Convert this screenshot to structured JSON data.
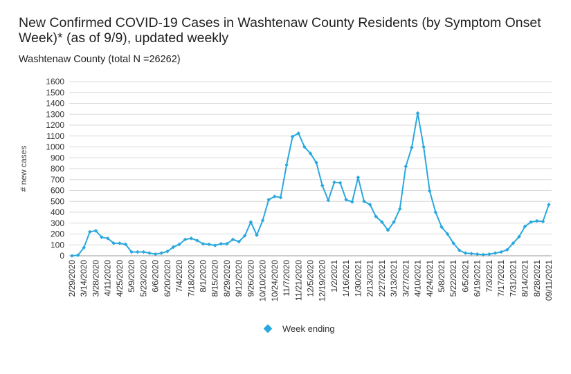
{
  "title": "New Confirmed COVID-19 Cases in Washtenaw County Residents (by Symptom Onset Week)* (as of 9/9), updated weekly",
  "subtitle": "Washtenaw County (total N =26262)",
  "colors": {
    "series": "#29a8de",
    "grid": "#d9d9d9"
  },
  "chart_data": {
    "type": "line",
    "title": "New Confirmed COVID-19 Cases in Washtenaw County Residents (by Symptom Onset Week)* (as of 9/9), updated weekly",
    "subtitle": "Washtenaw County (total N =26262)",
    "xlabel": "",
    "ylabel": "# new cases",
    "ylim": [
      0,
      1600
    ],
    "yticks": [
      0,
      100,
      200,
      300,
      400,
      500,
      600,
      700,
      800,
      900,
      1000,
      1100,
      1200,
      1300,
      1400,
      1500,
      1600
    ],
    "grid": true,
    "legend_position": "bottom",
    "x": [
      "2/29/2020",
      "3/7/2020",
      "3/14/2020",
      "3/21/2020",
      "3/28/2020",
      "4/4/2020",
      "4/11/2020",
      "4/18/2020",
      "4/25/2020",
      "5/2/2020",
      "5/9/2020",
      "5/16/2020",
      "5/23/2020",
      "5/30/2020",
      "6/6/2020",
      "6/13/2020",
      "6/20/2020",
      "6/27/2020",
      "7/4/2020",
      "7/11/2020",
      "7/18/2020",
      "7/25/2020",
      "8/1/2020",
      "8/8/2020",
      "8/15/2020",
      "8/22/2020",
      "8/29/2020",
      "9/5/2020",
      "9/12/2020",
      "9/19/2020",
      "9/26/2020",
      "10/3/2020",
      "10/10/2020",
      "10/17/2020",
      "10/24/2020",
      "10/31/2020",
      "11/7/2020",
      "11/14/2020",
      "11/21/2020",
      "11/28/2020",
      "12/5/2020",
      "12/12/2020",
      "12/19/2020",
      "12/26/2020",
      "1/2/2021",
      "1/9/2021",
      "1/16/2021",
      "1/23/2021",
      "1/30/2021",
      "2/6/2021",
      "2/13/2021",
      "2/20/2021",
      "2/27/2021",
      "3/6/2021",
      "3/13/2021",
      "3/20/2021",
      "3/27/2021",
      "4/3/2021",
      "4/10/2021",
      "4/17/2021",
      "4/24/2021",
      "5/1/2021",
      "5/8/2021",
      "5/15/2021",
      "5/22/2021",
      "5/29/2021",
      "6/5/2021",
      "6/12/2021",
      "6/19/2021",
      "6/26/2021",
      "7/3/2021",
      "7/10/2021",
      "7/17/2021",
      "7/24/2021",
      "7/31/2021",
      "8/7/2021",
      "8/14/2021",
      "8/21/2021",
      "8/28/2021",
      "9/4/2021",
      "09/11/2021"
    ],
    "xtick_labels": [
      "2/29/2020",
      "3/14/2020",
      "3/28/2020",
      "4/11/2020",
      "4/25/2020",
      "5/9/2020",
      "5/23/2020",
      "6/6/2020",
      "6/20/2020",
      "7/4/2020",
      "7/18/2020",
      "8/1/2020",
      "8/15/2020",
      "8/29/2020",
      "9/12/2020",
      "9/26/2020",
      "10/10/2020",
      "10/24/2020",
      "11/7/2020",
      "11/21/2020",
      "12/5/2020",
      "12/19/2020",
      "1/2/2021",
      "1/16/2021",
      "1/30/2021",
      "2/13/2021",
      "2/27/2021",
      "3/13/2021",
      "3/27/2021",
      "4/10/2021",
      "4/24/2021",
      "5/8/2021",
      "5/22/2021",
      "6/5/2021",
      "6/19/2021",
      "7/3/2021",
      "7/17/2021",
      "7/31/2021",
      "8/14/2021",
      "8/28/2021",
      "09/11/2021"
    ],
    "series": [
      {
        "name": "Week ending",
        "values": [
          0,
          5,
          75,
          220,
          230,
          170,
          160,
          115,
          115,
          105,
          35,
          35,
          35,
          25,
          15,
          25,
          40,
          80,
          105,
          150,
          160,
          140,
          110,
          105,
          95,
          110,
          110,
          150,
          130,
          185,
          310,
          190,
          325,
          515,
          545,
          535,
          835,
          1095,
          1125,
          1000,
          940,
          855,
          645,
          510,
          675,
          670,
          515,
          495,
          720,
          500,
          470,
          360,
          310,
          235,
          310,
          430,
          820,
          995,
          1310,
          1000,
          595,
          400,
          265,
          200,
          115,
          50,
          25,
          20,
          15,
          10,
          15,
          25,
          35,
          55,
          115,
          175,
          270,
          310,
          320,
          315,
          470
        ]
      }
    ]
  }
}
